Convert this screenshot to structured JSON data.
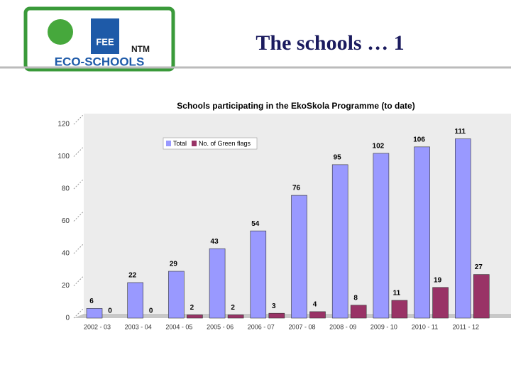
{
  "header": {
    "logo_text": "ECO-SCHOOLS",
    "fee": "FEE",
    "ntm": "NTM",
    "title": "The schools … 1"
  },
  "chart_data": {
    "type": "bar",
    "title": "Schools participating in the EkoSkola Programme (to date)",
    "categories": [
      "2002 - 03",
      "2003 - 04",
      "2004 - 05",
      "2005 - 06",
      "2006 - 07",
      "2007 - 08",
      "2008 - 09",
      "2009 - 10",
      "2010 - 11",
      "2011 - 12"
    ],
    "series": [
      {
        "name": "Total",
        "color": "#9999ff",
        "values": [
          6,
          22,
          29,
          43,
          54,
          76,
          95,
          102,
          106,
          111
        ]
      },
      {
        "name": "No. of Green flags",
        "color": "#993366",
        "values": [
          0,
          0,
          2,
          2,
          3,
          4,
          8,
          11,
          19,
          27
        ]
      }
    ],
    "ylim": [
      0,
      120
    ],
    "yticks": [
      0,
      20,
      40,
      60,
      80,
      100,
      120
    ],
    "grid": true,
    "legend": "top-left"
  }
}
